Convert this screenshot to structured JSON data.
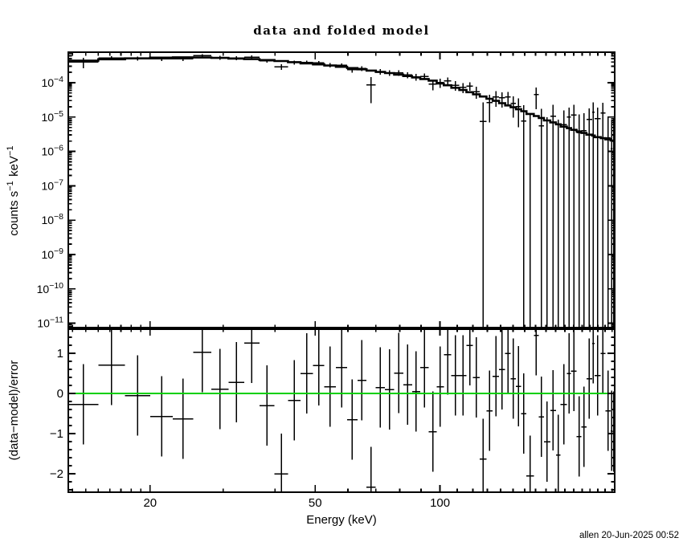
{
  "title": "data and folded model",
  "footer": "allen 20-Jun-2025 00:52",
  "colors": {
    "foreground": "#000000",
    "zero_line": "#00d000",
    "background": "#ffffff"
  },
  "chart_data": [
    {
      "type": "scatter",
      "name": "spectrum",
      "title": "data and folded model",
      "xlabel": "Energy (keV)",
      "ylabel": "counts s⁻¹ keV⁻¹",
      "ylabel_parts": [
        {
          "t": "counts s",
          "sup": false
        },
        {
          "t": "−1",
          "sup": true
        },
        {
          "t": " keV",
          "sup": false
        },
        {
          "t": "−1",
          "sup": true
        }
      ],
      "x_scale": "log",
      "y_scale": "log",
      "xlim": [
        12.7,
        263.7
      ],
      "ylim": [
        7.1e-12,
        0.00077
      ],
      "x_ticks": [
        20,
        50,
        100
      ],
      "x_minor_ticks": [
        13,
        14,
        15,
        16,
        17,
        18,
        19,
        30,
        40,
        60,
        70,
        80,
        90,
        110,
        120,
        130,
        140,
        150,
        160,
        170,
        180,
        190,
        200,
        210,
        220,
        230,
        240,
        250,
        260
      ],
      "y_tick_exponents": [
        -4,
        -5,
        -6,
        -7,
        -8,
        -9,
        -10,
        -11
      ],
      "grid": false,
      "legend": null,
      "bin_edges_kev": [
        12.7,
        15.0,
        17.4,
        20.0,
        22.7,
        25.4,
        28.1,
        30.9,
        33.7,
        36.7,
        39.9,
        43.0,
        46.1,
        49.4,
        52.6,
        56.1,
        59.7,
        63.2,
        66.5,
        70.0,
        73.7,
        77.5,
        81.5,
        85.6,
        89.6,
        93.9,
        98.2,
        102.1,
        106.5,
        111.3,
        115.8,
        120.1,
        124.7,
        129.4,
        134.0,
        138.8,
        143.6,
        148.0,
        152.4,
        157.0,
        161.6,
        168.3,
        173.0,
        178.0,
        184.4,
        190.2,
        195.3,
        202.2,
        207.0,
        213.4,
        219.2,
        225.4,
        232.5,
        236.1,
        244.0,
        250.3,
        257.8,
        261.0,
        263.7
      ],
      "data_counts": [
        0.000395,
        0.000525,
        0.000507,
        0.000495,
        0.0005,
        0.00061,
        0.00053,
        0.000518,
        0.000556,
        0.000434,
        0.00029,
        0.000387,
        0.00039,
        0.000374,
        0.000323,
        0.000319,
        0.000238,
        0.000258,
        8.5e-05,
        0.000211,
        0.000194,
        0.000193,
        0.000167,
        0.000147,
        0.000151,
        9.1e-05,
        0.0001,
        0.000112,
        8.4e-05,
        7.3e-05,
        8e-05,
        5.5e-05,
        7.4e-06,
        2.6e-05,
        3.8e-05,
        3.6e-05,
        3.8e-05,
        2.5e-05,
        2e-05,
        7.7e-06,
        null,
        4.5e-05,
        5.5e-06,
        null,
        1.05e-05,
        null,
        6e-06,
        1e-05,
        1.15e-05,
        3.5e-06,
        4e-06,
        8.5e-06,
        1.4e-05,
        9e-06,
        1.3e-05,
        2.5e-06,
        1.2e-06,
        1e-06
      ],
      "err_low_counts": [
        0.000265,
        0.000455,
        0.000437,
        0.000425,
        0.00043,
        0.00054,
        0.000462,
        0.000453,
        0.000496,
        0.000379,
        0.000238,
        0.000337,
        0.00034,
        0.000326,
        0.000277,
        0.000275,
        0.000196,
        0.000218,
        2.5e-05,
        0.000173,
        0.000158,
        0.000158,
        0.000133,
        0.000114,
        0.000119,
        6e-05,
        7e-05,
        8.4e-05,
        5.8e-05,
        4.9e-05,
        5.8e-05,
        3.4e-05,
        0,
        7e-06,
        2e-05,
        1.9e-05,
        2.2e-05,
        9.5e-06,
        5e-06,
        0,
        0,
        1.7e-05,
        0,
        0,
        0,
        0,
        0,
        0,
        0,
        0,
        0,
        0,
        0,
        0,
        0,
        0,
        0,
        0
      ],
      "err_high_counts": [
        0.000525,
        0.000595,
        0.000577,
        0.000565,
        0.00057,
        0.00068,
        0.000598,
        0.000583,
        0.000616,
        0.000489,
        0.000342,
        0.000437,
        0.00044,
        0.000422,
        0.000369,
        0.000363,
        0.00028,
        0.000298,
        0.000145,
        0.000249,
        0.00023,
        0.000228,
        0.000201,
        0.00018,
        0.000183,
        0.000122,
        0.00013,
        0.00014,
        0.00011,
        9.7e-05,
        0.000102,
        7.6e-05,
        2.7e-05,
        4.5e-05,
        5.6e-05,
        5.3e-05,
        5.4e-05,
        4.05e-05,
        3.5e-05,
        2.22e-05,
        1.3e-05,
        7.3e-05,
        1.75e-05,
        1e-05,
        2.3e-05,
        8.5e-06,
        1.55e-05,
        1.9e-05,
        2.3e-05,
        1.2e-05,
        1.3e-05,
        1.8e-05,
        2.7e-05,
        1.9e-05,
        2.6e-05,
        1e-05,
        8.5e-06,
        9e-06
      ],
      "model_counts": [
        0.000435,
        0.00048,
        0.00051,
        0.000535,
        0.000545,
        0.00054,
        0.000525,
        0.0005,
        0.000485,
        0.000455,
        0.000425,
        0.000395,
        0.000365,
        0.00034,
        0.000315,
        0.00029,
        0.000265,
        0.000245,
        0.000225,
        0.000205,
        0.00019,
        0.000172,
        0.000156,
        0.000142,
        0.000128,
        0.000115,
        9.5e-05,
        8.4e-05,
        7.1e-05,
        6.1e-05,
        5.3e-05,
        4.6e-05,
        3.95e-05,
        3.4e-05,
        2.95e-05,
        2.53e-05,
        2.18e-05,
        1.92e-05,
        1.68e-05,
        1.48e-05,
        1.23e-05,
        1.07e-05,
        9.4e-06,
        7.95e-06,
        7e-06,
        6.15e-06,
        5.25e-06,
        4.75e-06,
        4.25e-06,
        3.82e-06,
        3.45e-06,
        3.08e-06,
        2.89e-06,
        2.6e-06,
        2.42e-06,
        2.24e-06,
        2.08e-06,
        2.03e-06
      ]
    },
    {
      "type": "scatter",
      "name": "residuals",
      "xlabel": "Energy (keV)",
      "ylabel": "(data−model)/error",
      "x_scale": "log",
      "y_scale": "linear",
      "xlim": [
        12.7,
        263.7
      ],
      "ylim": [
        -2.46,
        1.62
      ],
      "y_ticks": [
        1,
        0,
        -1,
        -2
      ],
      "y_minor_step": 0.2,
      "zero_line": 0,
      "sigma": 1,
      "grid": false,
      "residuals": [
        -0.27,
        0.71,
        -0.05,
        -0.57,
        -0.63,
        1.03,
        0.11,
        0.28,
        1.26,
        -0.3,
        -2.0,
        -0.17,
        0.5,
        0.7,
        0.17,
        0.65,
        -0.65,
        0.33,
        -2.33,
        0.15,
        0.1,
        0.51,
        0.22,
        0.05,
        0.65,
        -0.95,
        0.17,
        0.97,
        0.45,
        0.45,
        1.2,
        0.4,
        -1.63,
        -0.43,
        0.43,
        0.6,
        1.0,
        0.37,
        0.18,
        -0.5,
        -2.05,
        1.45,
        -0.58,
        -1.2,
        -0.42,
        -1.53,
        -0.27,
        0.5,
        0.56,
        -1.07,
        -0.83,
        0.37,
        1.25,
        0.45,
        1.0,
        -0.43,
        -0.93,
        -0.95
      ]
    }
  ]
}
